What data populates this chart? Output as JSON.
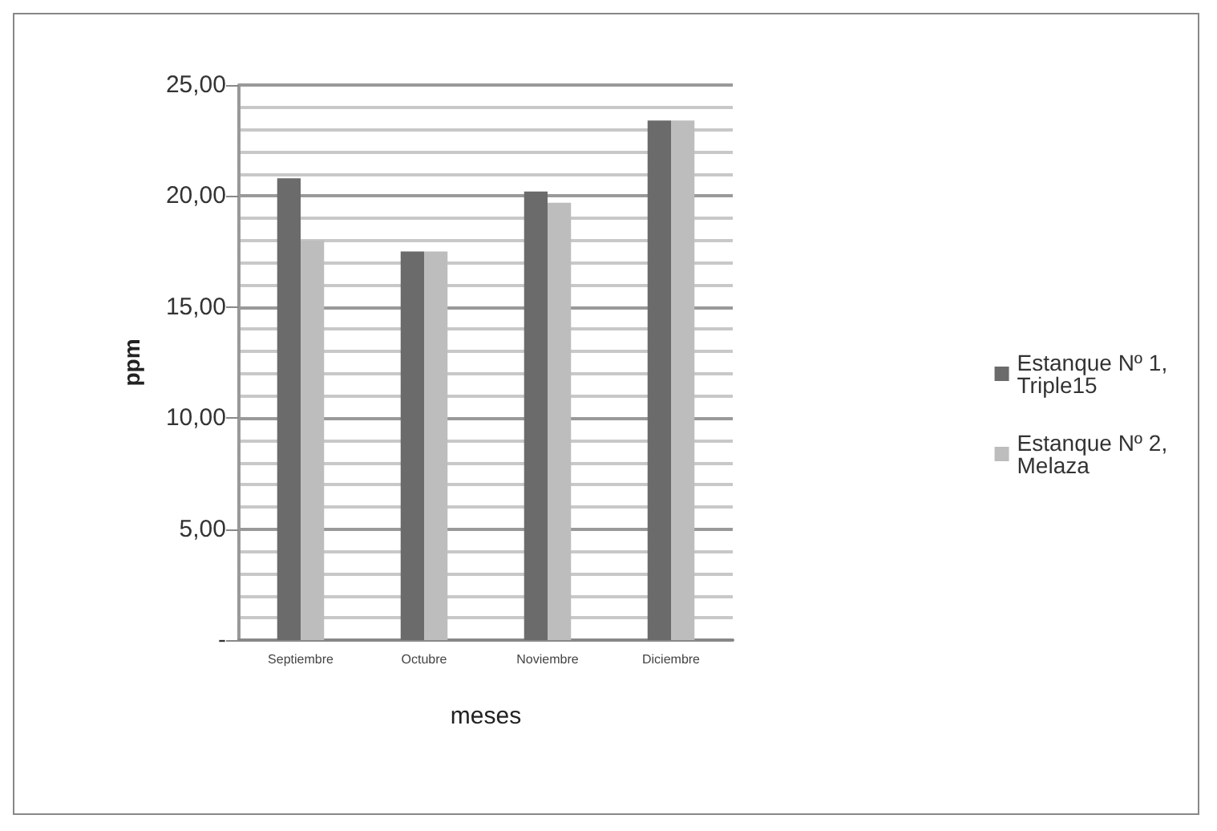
{
  "chart_data": {
    "type": "bar",
    "xlabel": "meses",
    "ylabel": "ppm",
    "categories": [
      "Septiembre",
      "Octubre",
      "Noviembre",
      "Diciembre"
    ],
    "series": [
      {
        "name": "Estanque Nº 1, Triple15",
        "color": "#6b6b6b",
        "values": [
          20.8,
          17.5,
          20.2,
          23.4
        ]
      },
      {
        "name": "Estanque Nº 2, Melaza",
        "color": "#bdbdbd",
        "values": [
          18.0,
          17.5,
          19.7,
          23.4
        ]
      }
    ],
    "ylim": [
      0,
      25
    ],
    "yticks": [
      {
        "value": 0,
        "label": "-"
      },
      {
        "value": 5,
        "label": "5,00"
      },
      {
        "value": 10,
        "label": "10,00"
      },
      {
        "value": 15,
        "label": "15,00"
      },
      {
        "value": 20,
        "label": "20,00"
      },
      {
        "value": 25,
        "label": "25,00"
      }
    ],
    "grid": "y",
    "legend": "right"
  }
}
